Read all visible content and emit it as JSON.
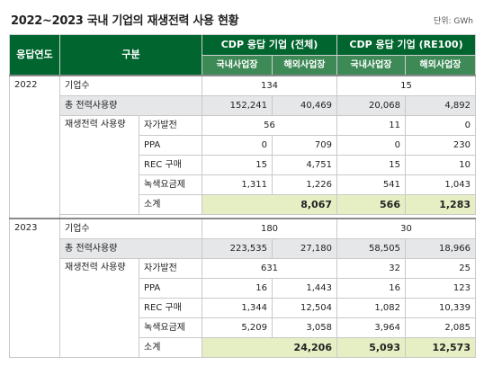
{
  "title": "2022~2023 국내 기업의 재생전력 사용 현황",
  "unit": "단위: GWh",
  "header": {
    "col_year": "응답연도",
    "col_category": "구분",
    "group_all": "CDP 응답 기업 (전체)",
    "group_re100": "CDP 응답 기업 (RE100)",
    "domestic": "국내사업장",
    "overseas": "해외사업장"
  },
  "years": [
    {
      "year": "2022",
      "companies_label": "기업수",
      "companies_all": "134",
      "companies_re100": "15",
      "total_label": "총 전력사용량",
      "total": [
        "152,241",
        "40,469",
        "20,068",
        "4,892"
      ],
      "renewable_label": "재생전력 사용량",
      "rows": [
        {
          "label": "자가발전",
          "merged": true,
          "all": "56",
          "re100": "11",
          "re100_overseas": "0"
        },
        {
          "label": "PPA",
          "values": [
            "0",
            "709",
            "0",
            "230"
          ]
        },
        {
          "label": "REC 구매",
          "values": [
            "15",
            "4,751",
            "15",
            "10"
          ]
        },
        {
          "label": "녹색요금제",
          "values": [
            "1,311",
            "1,226",
            "541",
            "1,043"
          ]
        }
      ],
      "subtotal_label": "소계",
      "subtotal_all": "8,067",
      "subtotal_re100_dom": "566",
      "subtotal_re100_ovs": "1,283"
    },
    {
      "year": "2023",
      "companies_label": "기업수",
      "companies_all": "180",
      "companies_re100": "30",
      "total_label": "총 전력사용량",
      "total": [
        "223,535",
        "27,180",
        "58,505",
        "18,966"
      ],
      "renewable_label": "재생전력 사용량",
      "rows": [
        {
          "label": "자가발전",
          "merged": true,
          "all": "631",
          "re100": "32",
          "re100_overseas": "25"
        },
        {
          "label": "PPA",
          "values": [
            "16",
            "1,443",
            "16",
            "123"
          ]
        },
        {
          "label": "REC 구매",
          "values": [
            "1,344",
            "12,504",
            "1,082",
            "10,339"
          ]
        },
        {
          "label": "녹색요금제",
          "values": [
            "5,209",
            "3,058",
            "3,964",
            "2,085"
          ]
        }
      ],
      "subtotal_label": "소계",
      "subtotal_all": "24,206",
      "subtotal_re100_dom": "5,093",
      "subtotal_re100_ovs": "12,573"
    }
  ]
}
